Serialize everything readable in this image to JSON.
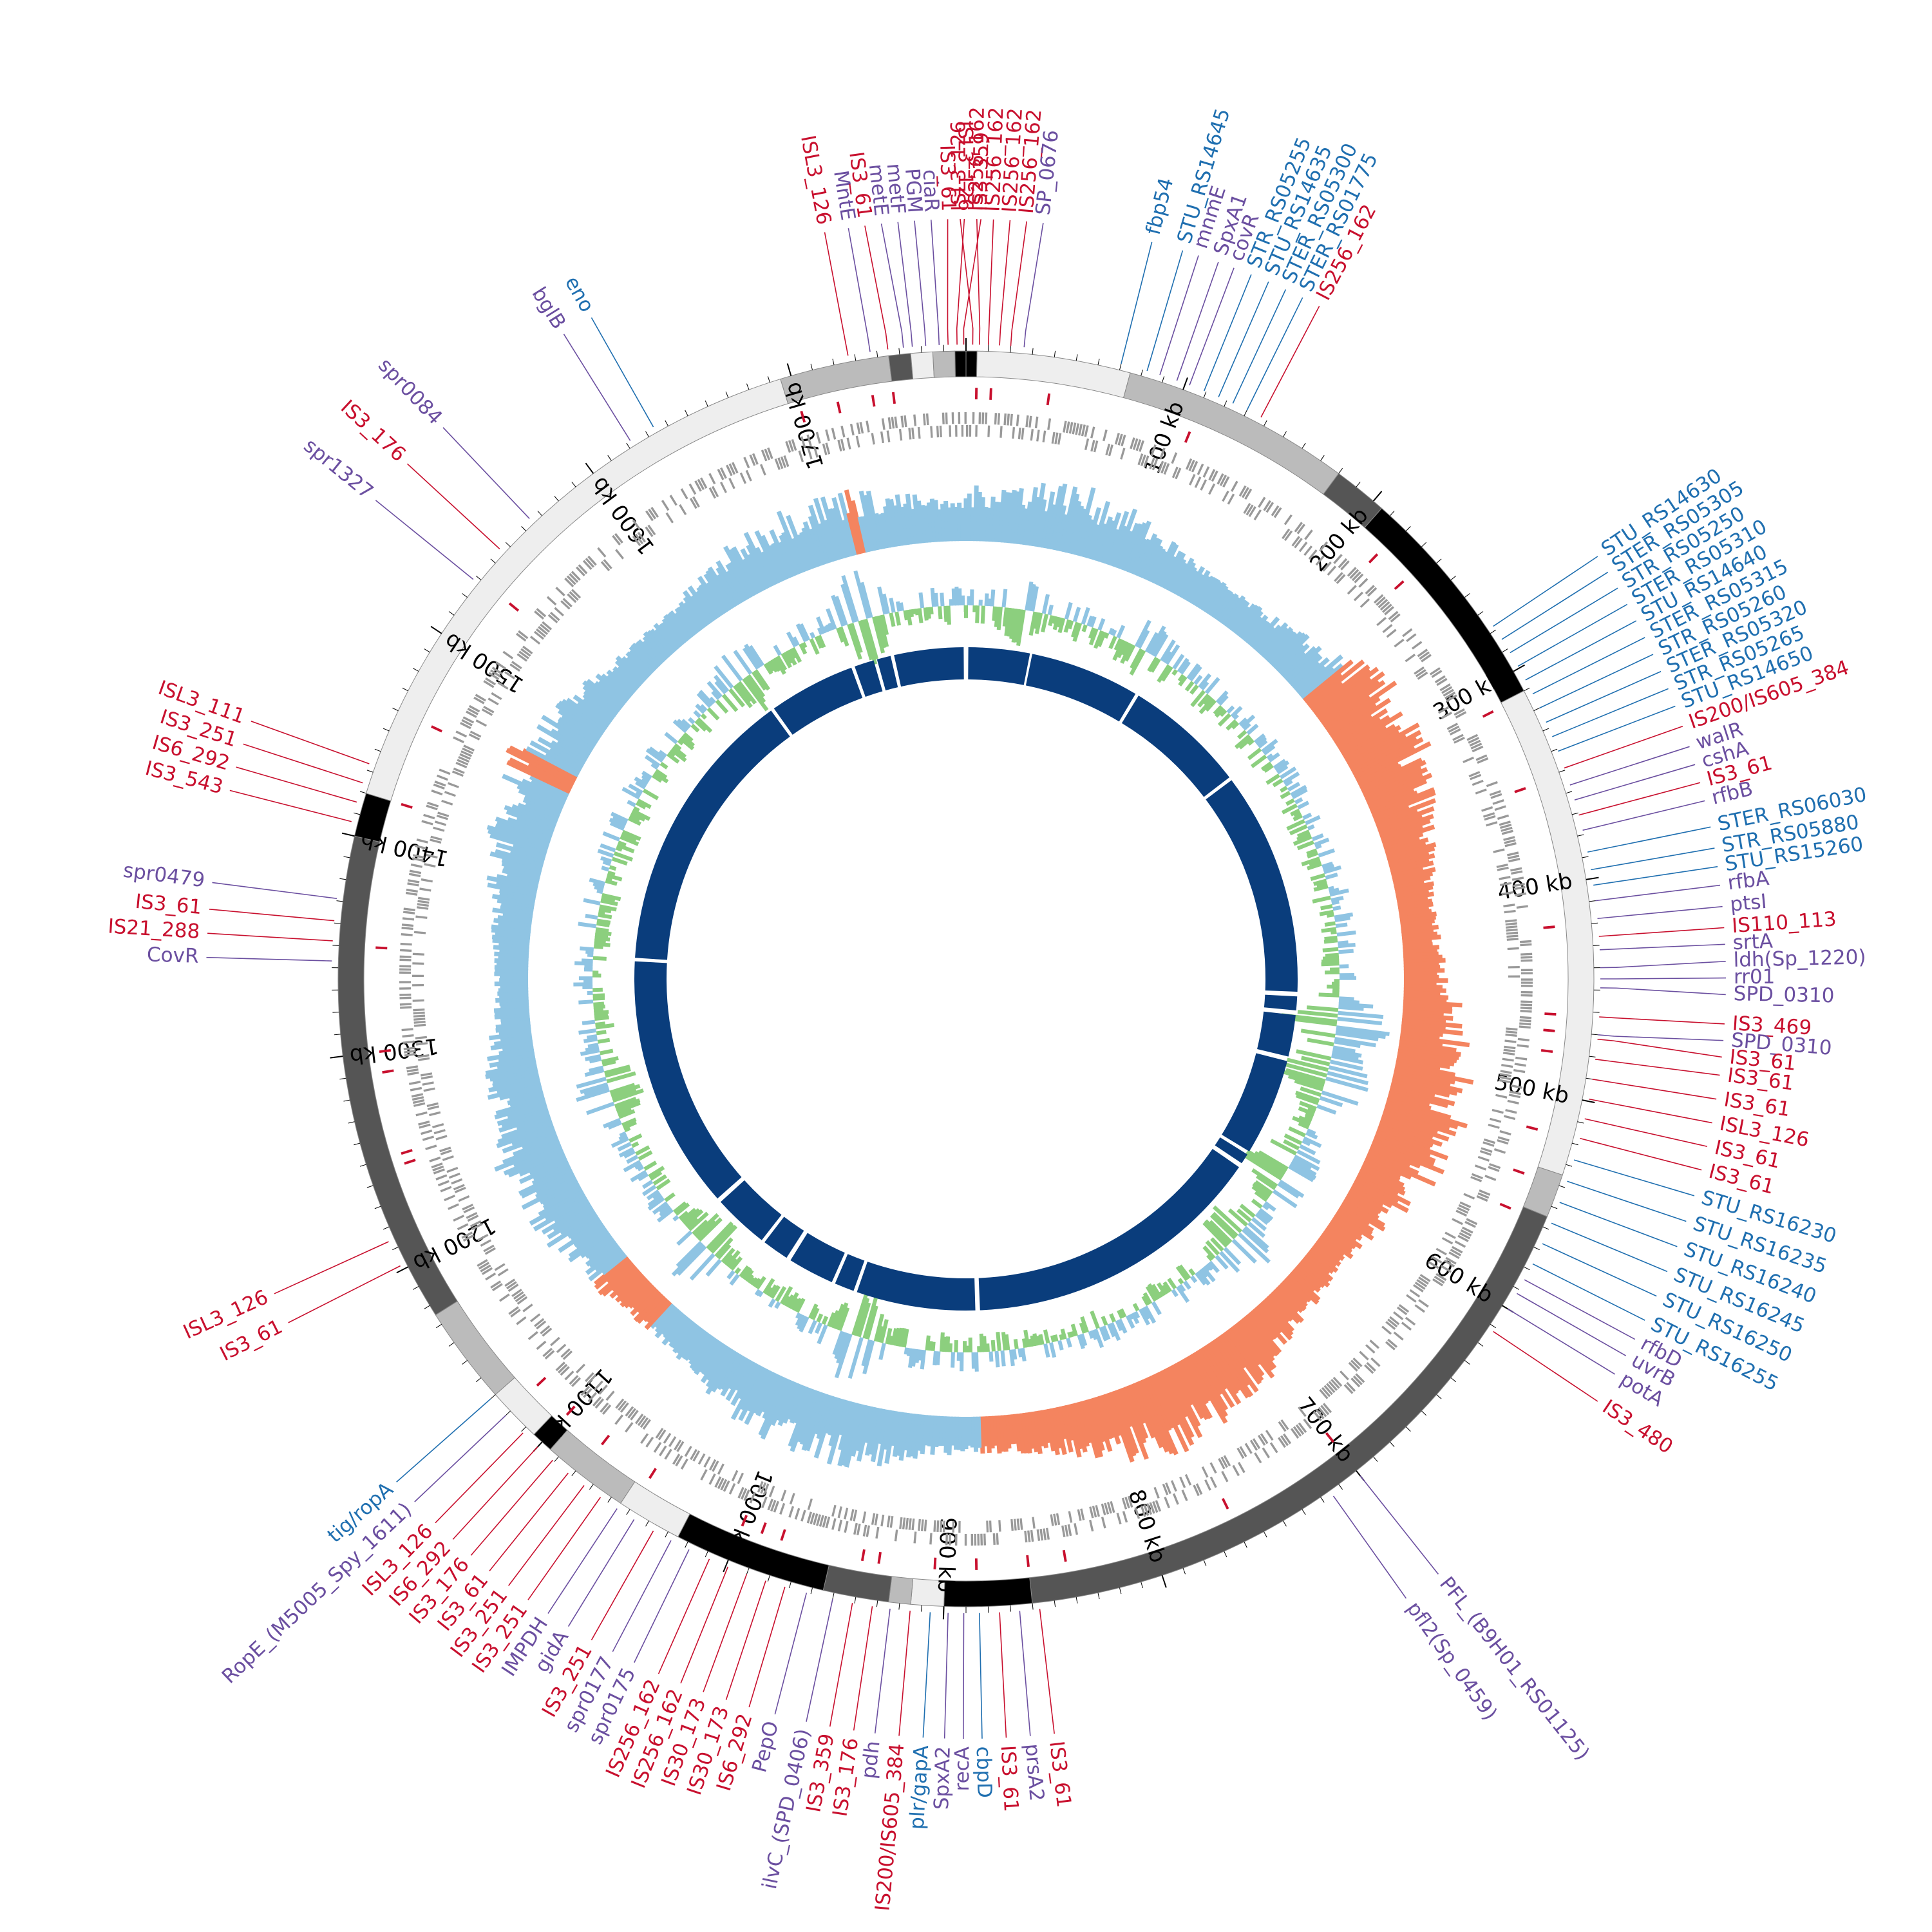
{
  "genome": {
    "length_kb": 1780,
    "scale_labels": [
      "100 kb",
      "200 kb",
      "300 kb",
      "400 kb",
      "500 kb",
      "600 kb",
      "700 kb",
      "800 kb",
      "900 kb",
      "1000 kb",
      "1100 kb",
      "1200 kb",
      "1300 kb",
      "1400 kb",
      "1500 kb",
      "1600 kb",
      "1700 kb"
    ],
    "scale_positions_kb": [
      100,
      200,
      300,
      400,
      500,
      600,
      700,
      800,
      900,
      1000,
      1100,
      1200,
      1300,
      1400,
      1500,
      1600,
      1700
    ],
    "colors": {
      "is_element": "#c8102e",
      "core_gene": "#6b4fa0",
      "strain_gene": "#1f6fb0",
      "gc_skew_neg": "#f4845f",
      "gc_skew_pos": "#8fc4e3",
      "gc_content_pos": "#8ccf7e",
      "gc_content_neg": "#8fc4e3",
      "blocks": "#0a3d7c",
      "gene_ring": "#999999",
      "block_light": "#eeeeee",
      "block_mid": "#bbbbbb",
      "block_dark": "#555555",
      "block_black": "#000000"
    },
    "backbone_segments": [
      {
        "start": 0,
        "end": 5,
        "shade": "black"
      },
      {
        "start": 5,
        "end": 75,
        "shade": "light"
      },
      {
        "start": 75,
        "end": 180,
        "shade": "mid"
      },
      {
        "start": 180,
        "end": 205,
        "shade": "dark"
      },
      {
        "start": 205,
        "end": 310,
        "shade": "black"
      },
      {
        "start": 310,
        "end": 535,
        "shade": "light"
      },
      {
        "start": 535,
        "end": 555,
        "shade": "mid"
      },
      {
        "start": 555,
        "end": 860,
        "shade": "dark"
      },
      {
        "start": 860,
        "end": 900,
        "shade": "black"
      },
      {
        "start": 900,
        "end": 915,
        "shade": "light"
      },
      {
        "start": 915,
        "end": 925,
        "shade": "mid"
      },
      {
        "start": 925,
        "end": 955,
        "shade": "dark"
      },
      {
        "start": 955,
        "end": 1025,
        "shade": "black"
      },
      {
        "start": 1025,
        "end": 1055,
        "shade": "light"
      },
      {
        "start": 1055,
        "end": 1095,
        "shade": "mid"
      },
      {
        "start": 1095,
        "end": 1105,
        "shade": "black"
      },
      {
        "start": 1105,
        "end": 1130,
        "shade": "light"
      },
      {
        "start": 1130,
        "end": 1175,
        "shade": "mid"
      },
      {
        "start": 1175,
        "end": 1400,
        "shade": "dark"
      },
      {
        "start": 1400,
        "end": 1420,
        "shade": "black"
      },
      {
        "start": 1420,
        "end": 1695,
        "shade": "light"
      },
      {
        "start": 1695,
        "end": 1745,
        "shade": "mid"
      },
      {
        "start": 1745,
        "end": 1755,
        "shade": "dark"
      },
      {
        "start": 1755,
        "end": 1765,
        "shade": "light"
      },
      {
        "start": 1765,
        "end": 1775,
        "shade": "mid"
      },
      {
        "start": 1775,
        "end": 1780,
        "shade": "black"
      }
    ],
    "synteny_blocks": [
      {
        "start": 2,
        "end": 55
      },
      {
        "start": 57,
        "end": 152
      },
      {
        "start": 155,
        "end": 260
      },
      {
        "start": 263,
        "end": 456
      },
      {
        "start": 460,
        "end": 472
      },
      {
        "start": 476,
        "end": 512
      },
      {
        "start": 516,
        "end": 600
      },
      {
        "start": 603,
        "end": 612
      },
      {
        "start": 616,
        "end": 878
      },
      {
        "start": 882,
        "end": 985
      },
      {
        "start": 988,
        "end": 1005
      },
      {
        "start": 1008,
        "end": 1048
      },
      {
        "start": 1052,
        "end": 1075
      },
      {
        "start": 1078,
        "end": 1126
      },
      {
        "start": 1130,
        "end": 1350
      },
      {
        "start": 1353,
        "end": 1602
      },
      {
        "start": 1605,
        "end": 1680
      },
      {
        "start": 1683,
        "end": 1700
      },
      {
        "start": 1703,
        "end": 1715
      },
      {
        "start": 1718,
        "end": 1778
      }
    ],
    "gc_skew_negative_ranges": [
      [
        250,
        880
      ],
      [
        1100,
        1140
      ],
      [
        1460,
        1470
      ],
      [
        1710,
        1715
      ]
    ],
    "gc_content_peaks": [
      [
        480,
        1
      ],
      [
        520,
        0.9
      ],
      [
        600,
        0.7
      ],
      [
        660,
        0.6
      ],
      [
        975,
        0.8
      ],
      [
        1110,
        0.6
      ],
      [
        1250,
        0.5
      ],
      [
        1600,
        0.5
      ],
      [
        1700,
        0.9
      ],
      [
        40,
        0.5
      ],
      [
        140,
        0.4
      ]
    ],
    "is_markers_kb": [
      5,
      12,
      40,
      110,
      218,
      236,
      312,
      352,
      420,
      462,
      470,
      480,
      518,
      540,
      558,
      700,
      760,
      842,
      860,
      885,
      905,
      932,
      940,
      980,
      990,
      1000,
      1050,
      1078,
      1100,
      1120,
      1245,
      1250,
      1290,
      1300,
      1350,
      1420,
      1460,
      1530,
      1700,
      1718,
      1735,
      1745
    ]
  },
  "labels": [
    {
      "text": "ISL3_126",
      "kb": 1727,
      "group": "is"
    },
    {
      "text": "MntE",
      "kb": 1737,
      "group": "core"
    },
    {
      "text": "IS3_61",
      "kb": 1745,
      "group": "is"
    },
    {
      "text": "metE",
      "kb": 1752,
      "group": "core"
    },
    {
      "text": "metF",
      "kb": 1756,
      "group": "core"
    },
    {
      "text": "PGM",
      "kb": 1762,
      "group": "core"
    },
    {
      "text": "ciaR",
      "kb": 1768,
      "group": "core"
    },
    {
      "text": "IS3_61",
      "kb": 1772,
      "group": "is"
    },
    {
      "text": "ISL3_126",
      "kb": 1776,
      "group": "is"
    },
    {
      "text": "IS3_359",
      "kb": 1779,
      "group": "is"
    },
    {
      "text": "ISL3_126",
      "kb": 3,
      "group": "is"
    },
    {
      "text": "IS256_162",
      "kb": 6,
      "group": "is"
    },
    {
      "text": "IS256_162",
      "kb": 10,
      "group": "is"
    },
    {
      "text": "IS256_162",
      "kb": 15,
      "group": "is"
    },
    {
      "text": "IS256_162",
      "kb": 20,
      "group": "is"
    },
    {
      "text": "SP_0676",
      "kb": 26,
      "group": "core"
    },
    {
      "text": "fbp54",
      "kb": 70,
      "group": "strain"
    },
    {
      "text": "STU_RS14645",
      "kb": 82,
      "group": "strain"
    },
    {
      "text": "mnmE",
      "kb": 88,
      "group": "core"
    },
    {
      "text": "SpxA1",
      "kb": 96,
      "group": "core"
    },
    {
      "text": "covR",
      "kb": 102,
      "group": "core"
    },
    {
      "text": "STR_RS05255",
      "kb": 109,
      "group": "strain"
    },
    {
      "text": "STU_RS14635",
      "kb": 116,
      "group": "strain"
    },
    {
      "text": "STER_RS05300",
      "kb": 123,
      "group": "strain"
    },
    {
      "text": "STER_RS01775",
      "kb": 130,
      "group": "strain"
    },
    {
      "text": "IS256_162",
      "kb": 137,
      "group": "is"
    },
    {
      "text": "SPD_0310",
      "kb": 470,
      "group": "core"
    },
    {
      "text": "ldh(Sp_1220)",
      "kb": 440,
      "group": "core"
    },
    {
      "text": "srtA",
      "kb": 432,
      "group": "core"
    },
    {
      "text": "IS110_113",
      "kb": 426,
      "group": "is"
    },
    {
      "text": "ptsI",
      "kb": 418,
      "group": "core"
    },
    {
      "text": "rfbA",
      "kb": 410,
      "group": "core"
    },
    {
      "text": "STU_RS15260",
      "kb": 403,
      "group": "strain"
    },
    {
      "text": "STR_RS05880",
      "kb": 396,
      "group": "strain"
    },
    {
      "text": "STER_RS06030",
      "kb": 388,
      "group": "strain"
    },
    {
      "text": "rfbB",
      "kb": 378,
      "group": "core"
    },
    {
      "text": "IS3_61",
      "kb": 371,
      "group": "is"
    },
    {
      "text": "cshA",
      "kb": 364,
      "group": "core"
    },
    {
      "text": "walR",
      "kb": 357,
      "group": "core"
    },
    {
      "text": "IS200/IS605_384",
      "kb": 349,
      "group": "is"
    },
    {
      "text": "STU_RS14650",
      "kb": 341,
      "group": "strain"
    },
    {
      "text": "STR_RS05265",
      "kb": 334,
      "group": "strain"
    },
    {
      "text": "STER_RS05320",
      "kb": 327,
      "group": "strain"
    },
    {
      "text": "STR_RS05260",
      "kb": 320,
      "group": "strain"
    },
    {
      "text": "STER_RS05315",
      "kb": 313,
      "group": "strain"
    },
    {
      "text": "STU_RS14640",
      "kb": 306,
      "group": "strain"
    },
    {
      "text": "STER_RS05310",
      "kb": 299,
      "group": "strain"
    },
    {
      "text": "STR_RS05250",
      "kb": 292,
      "group": "strain"
    },
    {
      "text": "STER_RS05305",
      "kb": 285,
      "group": "strain"
    },
    {
      "text": "STU_RS14630",
      "kb": 278,
      "group": "strain"
    },
    {
      "text": "SPD_0310",
      "kb": 449,
      "group": "core"
    },
    {
      "text": "rr01",
      "kb": 445,
      "group": "core"
    },
    {
      "text": "IS3_469",
      "kb": 462,
      "group": "is"
    },
    {
      "text": "IS3_61",
      "kb": 472,
      "group": "is"
    },
    {
      "text": "IS3_61",
      "kb": 481,
      "group": "is"
    },
    {
      "text": "IS3_61",
      "kb": 490,
      "group": "is"
    },
    {
      "text": "ISL3_126",
      "kb": 499,
      "group": "is"
    },
    {
      "text": "IS3_61",
      "kb": 508,
      "group": "is"
    },
    {
      "text": "IS3_61",
      "kb": 517,
      "group": "is"
    },
    {
      "text": "STU_RS16230",
      "kb": 527,
      "group": "strain"
    },
    {
      "text": "STU_RS16235",
      "kb": 537,
      "group": "strain"
    },
    {
      "text": "STU_RS16240",
      "kb": 547,
      "group": "strain"
    },
    {
      "text": "STU_RS16245",
      "kb": 557,
      "group": "strain"
    },
    {
      "text": "STU_RS16250",
      "kb": 567,
      "group": "strain"
    },
    {
      "text": "STU_RS16255",
      "kb": 577,
      "group": "strain"
    },
    {
      "text": "rfbD",
      "kb": 585,
      "group": "core"
    },
    {
      "text": "uvrB",
      "kb": 592,
      "group": "core"
    },
    {
      "text": "potA",
      "kb": 600,
      "group": "core"
    },
    {
      "text": "IS3_480",
      "kb": 612,
      "group": "is"
    },
    {
      "text": "PFL_(B9H01_RS01125)",
      "kb": 700,
      "group": "core"
    },
    {
      "text": "pfl2(Sp_0459)",
      "kb": 715,
      "group": "core"
    },
    {
      "text": "IS3_61",
      "kb": 857,
      "group": "is"
    },
    {
      "text": "prsA2",
      "kb": 866,
      "group": "core"
    },
    {
      "text": "IS3_61",
      "kb": 875,
      "group": "is"
    },
    {
      "text": "cbpD",
      "kb": 884,
      "group": "strain"
    },
    {
      "text": "recA",
      "kb": 891,
      "group": "core"
    },
    {
      "text": "SpxA2",
      "kb": 898,
      "group": "core"
    },
    {
      "text": "plr/gapA",
      "kb": 906,
      "group": "strain"
    },
    {
      "text": "IS200/IS605_384",
      "kb": 915,
      "group": "is"
    },
    {
      "text": "pdh",
      "kb": 924,
      "group": "core"
    },
    {
      "text": "IS3_176",
      "kb": 932,
      "group": "is"
    },
    {
      "text": "IS3_359",
      "kb": 941,
      "group": "is"
    },
    {
      "text": "ilvC_(SPD_0406)",
      "kb": 950,
      "group": "core"
    },
    {
      "text": "PepO",
      "kb": 962,
      "group": "core"
    },
    {
      "text": "IS6_292",
      "kb": 972,
      "group": "is"
    },
    {
      "text": "IS30_173",
      "kb": 981,
      "group": "is"
    },
    {
      "text": "IS30_173",
      "kb": 990,
      "group": "is"
    },
    {
      "text": "IS256_162",
      "kb": 999,
      "group": "is"
    },
    {
      "text": "IS256_162",
      "kb": 1008,
      "group": "is"
    },
    {
      "text": "spr0175",
      "kb": 1018,
      "group": "core"
    },
    {
      "text": "spr0177",
      "kb": 1027,
      "group": "core"
    },
    {
      "text": "IS3_251",
      "kb": 1036,
      "group": "is"
    },
    {
      "text": "gidA",
      "kb": 1046,
      "group": "core"
    },
    {
      "text": "IMPDH",
      "kb": 1055,
      "group": "core"
    },
    {
      "text": "IS3_251",
      "kb": 1064,
      "group": "is"
    },
    {
      "text": "IS3_251",
      "kb": 1073,
      "group": "is"
    },
    {
      "text": "IS3_61",
      "kb": 1082,
      "group": "is"
    },
    {
      "text": "IS3_176",
      "kb": 1091,
      "group": "is"
    },
    {
      "text": "IS6_292",
      "kb": 1100,
      "group": "is"
    },
    {
      "text": "ISL3_126",
      "kb": 1109,
      "group": "is"
    },
    {
      "text": "RopE_(M5005_Spy_1611)",
      "kb": 1120,
      "group": "core"
    },
    {
      "text": "tig/ropA",
      "kb": 1130,
      "group": "strain"
    },
    {
      "text": "IS3_61",
      "kb": 1202,
      "group": "is"
    },
    {
      "text": "ISL3_126",
      "kb": 1214,
      "group": "is"
    },
    {
      "text": "CovR",
      "kb": 1343,
      "group": "core"
    },
    {
      "text": "IS21_288",
      "kb": 1352,
      "group": "is"
    },
    {
      "text": "IS3_61",
      "kb": 1361,
      "group": "is"
    },
    {
      "text": "spr0479",
      "kb": 1371,
      "group": "core"
    },
    {
      "text": "IS3_543",
      "kb": 1406,
      "group": "is"
    },
    {
      "text": "IS6_292",
      "kb": 1415,
      "group": "is"
    },
    {
      "text": "IS3_251",
      "kb": 1424,
      "group": "is"
    },
    {
      "text": "ISL3_111",
      "kb": 1433,
      "group": "is"
    },
    {
      "text": "spr1327",
      "kb": 1528,
      "group": "core"
    },
    {
      "text": "IS3_176",
      "kb": 1546,
      "group": "is"
    },
    {
      "text": "spr0084",
      "kb": 1565,
      "group": "core"
    },
    {
      "text": "bglB",
      "kb": 1622,
      "group": "core"
    },
    {
      "text": "eno",
      "kb": 1634,
      "group": "strain"
    }
  ]
}
